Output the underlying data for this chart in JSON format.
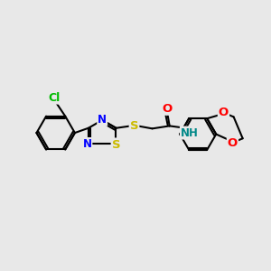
{
  "bg_color": "#e8e8e8",
  "bond_color": "#000000",
  "bond_width": 1.5,
  "atom_colors": {
    "C": "#000000",
    "N": "#0000ff",
    "S": "#ccbb00",
    "O": "#ff0000",
    "Cl": "#00bb00",
    "NH": "#008888"
  },
  "font_size": 8.5,
  "dbl_off": 0.08
}
